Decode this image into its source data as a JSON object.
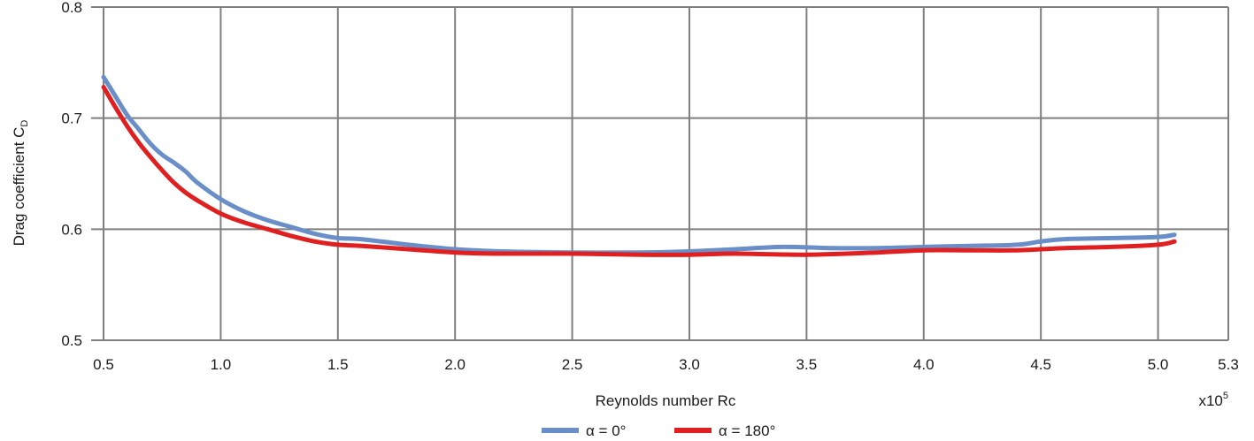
{
  "chart_data": {
    "type": "line",
    "title": "",
    "xlabel": "Reynolds number Rc",
    "xlabel_multiplier_base": "x10",
    "xlabel_multiplier_exp": "5",
    "ylabel_main": "Drag coefficient C",
    "ylabel_sub": "D",
    "xlim": [
      0.5,
      5.3
    ],
    "ylim": [
      0.5,
      0.8
    ],
    "x_ticks": [
      0.5,
      1.0,
      1.5,
      2.0,
      2.5,
      3.0,
      3.5,
      4.0,
      4.5,
      5.0,
      5.3
    ],
    "x_tick_labels": [
      "0.5",
      "1.0",
      "1.5",
      "2.0",
      "2.5",
      "3.0",
      "3.5",
      "4.0",
      "4.5",
      "5.0",
      "5.3"
    ],
    "y_ticks": [
      0.5,
      0.6,
      0.7,
      0.8
    ],
    "y_tick_labels": [
      "0.5",
      "0.6",
      "0.7",
      "0.8"
    ],
    "grid": true,
    "legend_position": "bottom-center",
    "series": [
      {
        "name": "α = 0°",
        "color": "#6a8ec8",
        "x": [
          0.5,
          0.55,
          0.6,
          0.65,
          0.7,
          0.75,
          0.8,
          0.85,
          0.9,
          1.0,
          1.1,
          1.2,
          1.3,
          1.4,
          1.5,
          1.6,
          1.8,
          2.0,
          2.2,
          2.5,
          2.8,
          3.0,
          3.2,
          3.4,
          3.6,
          3.8,
          4.0,
          4.2,
          4.4,
          4.5,
          4.6,
          4.8,
          5.0,
          5.07
        ],
        "values": [
          0.737,
          0.72,
          0.703,
          0.69,
          0.677,
          0.667,
          0.66,
          0.652,
          0.642,
          0.627,
          0.616,
          0.608,
          0.602,
          0.596,
          0.592,
          0.591,
          0.586,
          0.582,
          0.58,
          0.579,
          0.579,
          0.58,
          0.582,
          0.584,
          0.583,
          0.583,
          0.584,
          0.585,
          0.586,
          0.589,
          0.591,
          0.592,
          0.593,
          0.595
        ]
      },
      {
        "name": "α = 180°",
        "color": "#e02020",
        "x": [
          0.5,
          0.55,
          0.6,
          0.65,
          0.7,
          0.75,
          0.8,
          0.85,
          0.9,
          1.0,
          1.1,
          1.2,
          1.3,
          1.4,
          1.5,
          1.6,
          1.8,
          2.0,
          2.2,
          2.5,
          2.8,
          3.0,
          3.2,
          3.5,
          3.8,
          4.0,
          4.2,
          4.4,
          4.6,
          4.8,
          5.0,
          5.07
        ],
        "values": [
          0.728,
          0.71,
          0.693,
          0.678,
          0.665,
          0.653,
          0.642,
          0.633,
          0.626,
          0.614,
          0.606,
          0.6,
          0.594,
          0.589,
          0.586,
          0.585,
          0.582,
          0.579,
          0.578,
          0.578,
          0.577,
          0.577,
          0.578,
          0.577,
          0.579,
          0.581,
          0.581,
          0.581,
          0.583,
          0.584,
          0.586,
          0.589
        ]
      }
    ]
  }
}
